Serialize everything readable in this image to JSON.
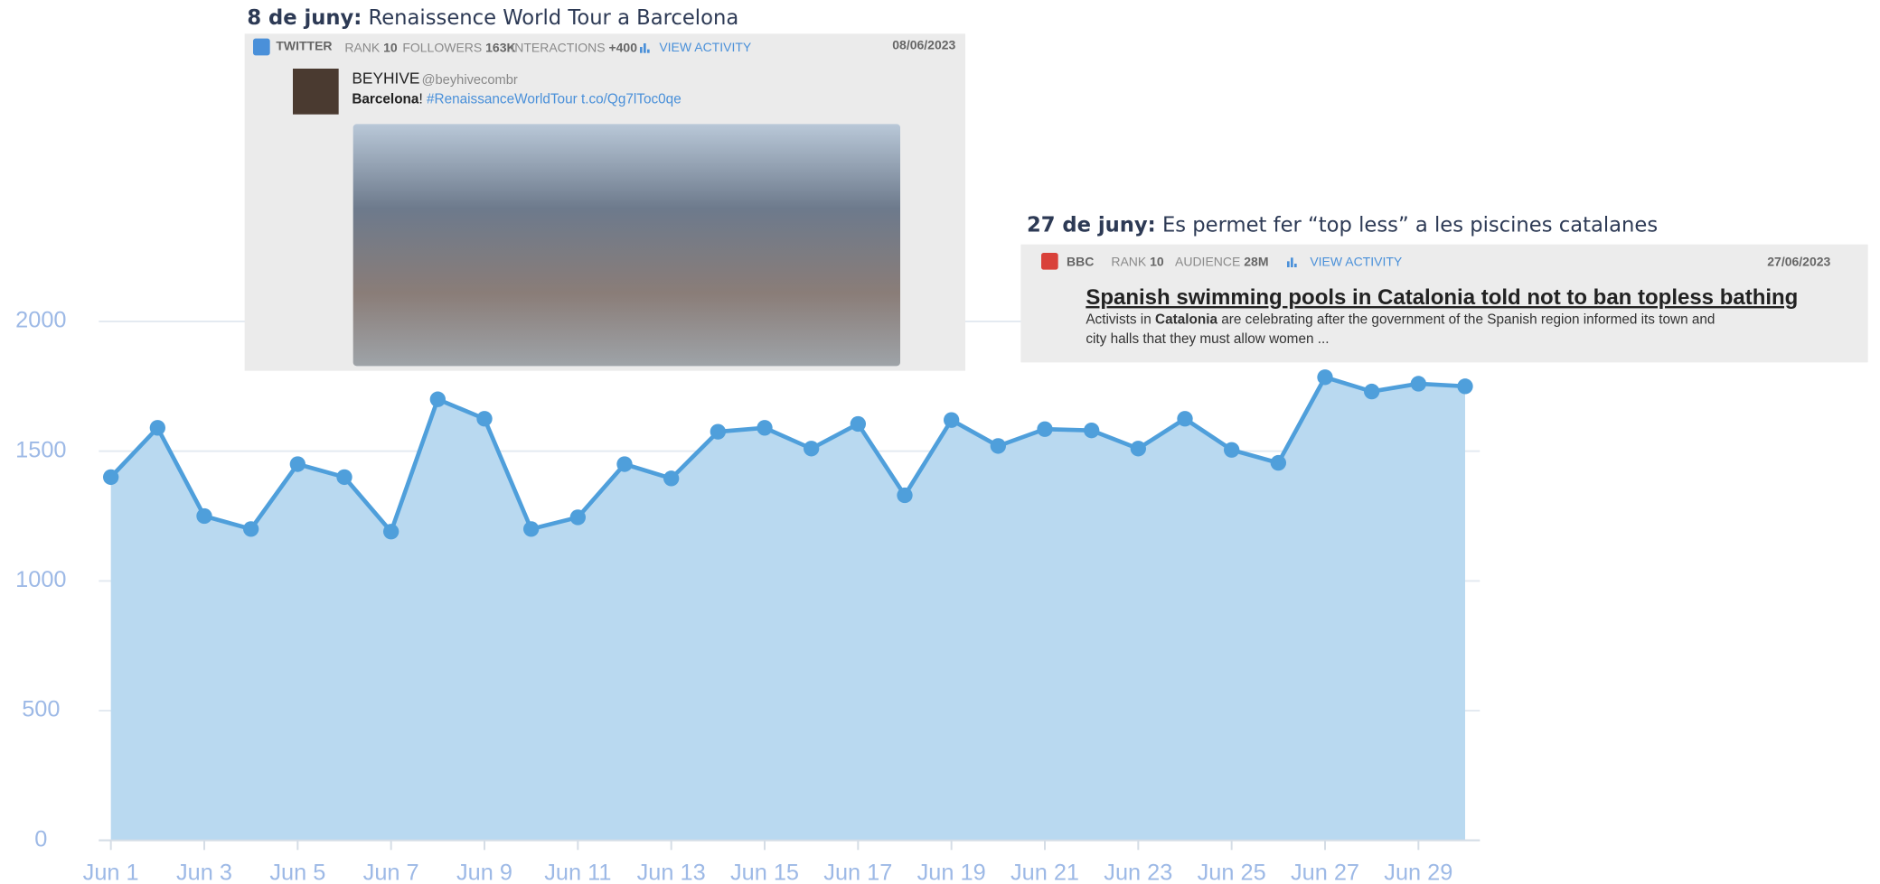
{
  "chart_data": {
    "type": "area",
    "categories": [
      "Jun 1",
      null,
      "Jun 3",
      null,
      "Jun 5",
      null,
      "Jun 7",
      null,
      "Jun 9",
      null,
      "Jun 11",
      null,
      "Jun 13",
      null,
      "Jun 15",
      null,
      "Jun 17",
      null,
      "Jun 19",
      null,
      "Jun 21",
      null,
      "Jun 23",
      null,
      "Jun 25",
      null,
      "Jun 27",
      null,
      "Jun 29",
      null
    ],
    "values": [
      1400,
      1590,
      1250,
      1200,
      1450,
      1400,
      1190,
      1700,
      1625,
      1200,
      1245,
      1450,
      1395,
      1575,
      1590,
      1510,
      1605,
      1330,
      1620,
      1520,
      1585,
      1580,
      1510,
      1625,
      1505,
      1455,
      1785,
      1730,
      1760,
      1750
    ],
    "color": "#4f9fdb",
    "fill_color": "#b9d9f0",
    "ylim": [
      0,
      2000
    ],
    "yticks": [
      0,
      500,
      1000,
      1500,
      2000
    ],
    "grid": true
  },
  "annotations": [
    {
      "date_label": "8 de juny:",
      "title": "Renaissence World Tour a Barcelona",
      "source": "TWITTER",
      "rank_label": "RANK",
      "rank": "10",
      "followers_label": "FOLLOWERS",
      "followers": "163K",
      "interactions_label": "INTERACTIONS",
      "interactions": "+400",
      "action": "VIEW ACTIVITY",
      "date": "08/06/2023",
      "author": "BEYHIVE",
      "handle": "@beyhivecombr",
      "text_bold": "Barcelona",
      "text_plain": "!",
      "text_link": "#RenaissanceWorldTour t.co/Qg7lToc0qe"
    },
    {
      "date_label": "27 de juny:",
      "title": "Es permet fer “top less” a les piscines catalanes",
      "source": "BBC",
      "rank_label": "RANK",
      "rank": "10",
      "audience_label": "AUDIENCE",
      "audience": "28M",
      "action": "VIEW ACTIVITY",
      "date": "27/06/2023",
      "headline": "Spanish swimming pools in Catalonia told not to ban topless bathing",
      "body_start": "Activists in",
      "body_bold": "Catalonia",
      "body_rest": "are celebrating after the government of the Spanish region informed its town and",
      "body_line2": "city halls that they must allow women ..."
    }
  ]
}
